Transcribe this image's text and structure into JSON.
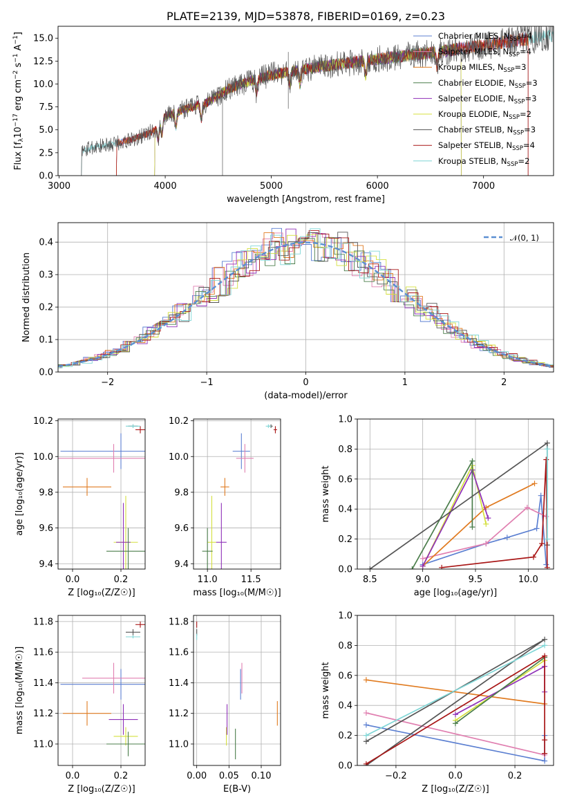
{
  "chart_data": [
    {
      "id": "spectrum",
      "type": "line",
      "title": "PLATE=2139, MJD=53878, FIBERID=0169, z=0.23",
      "xlabel": "wavelength [Angstrom, rest frame]",
      "ylabel_parts": {
        "pre": "Flux [f",
        "sub": "λ",
        "mid": "10",
        "sup1": "−17",
        "mid2": " erg cm",
        "sup2": "−2",
        "mid3": " s",
        "sup3": "−1",
        "mid4": " A",
        "sup4": "−1",
        "post": "]"
      },
      "xlim": [
        2990,
        7660
      ],
      "ylim": [
        0,
        16.3
      ],
      "xticks": [
        3000,
        4000,
        5000,
        6000,
        7000
      ],
      "xticklabels": [
        "3000",
        "4000",
        "5000",
        "6000",
        "7000"
      ],
      "yticks": [
        0,
        2.5,
        5,
        7.5,
        10,
        12.5,
        15
      ],
      "yticklabels": [
        "0.0",
        "2.5",
        "5.0",
        "7.5",
        "10.0",
        "12.5",
        "15.0"
      ],
      "grid": false,
      "legend_position": "upper-right",
      "continuum": {
        "x": [
          3210,
          3300,
          3500,
          3700,
          3900,
          4000,
          4200,
          4400,
          4600,
          4800,
          5000,
          5200,
          5400,
          5600,
          5800,
          6000,
          6200,
          6400,
          6600,
          6800,
          7000,
          7200,
          7400,
          7600
        ],
        "y": [
          2.6,
          3.1,
          3.4,
          4.0,
          4.9,
          6.5,
          7.3,
          8.0,
          9.5,
          10.3,
          11.0,
          11.4,
          11.8,
          12.1,
          12.4,
          12.7,
          13.0,
          13.3,
          13.5,
          13.9,
          14.2,
          14.6,
          14.9,
          15.2
        ]
      },
      "series": [
        {
          "name": "Chabrier MILES, N<sub>SSP</sub>=4",
          "color": "#5b7fd1",
          "x_range": [
            3540,
            7420
          ]
        },
        {
          "name": "Salpeter MILES, N<sub>SSP</sub>=4",
          "color": "#e07fb0",
          "x_range": [
            3540,
            7420
          ]
        },
        {
          "name": "Kroupa MILES, N<sub>SSP</sub>=3",
          "color": "#e07a1f",
          "x_range": [
            3540,
            7420
          ]
        },
        {
          "name": "Chabrier ELODIE, N<sub>SSP</sub>=3",
          "color": "#4a7d4a",
          "x_range": [
            3900,
            6790
          ]
        },
        {
          "name": "Salpeter ELODIE, N<sub>SSP</sub>=3",
          "color": "#8e2fb8",
          "x_range": [
            3900,
            6790
          ]
        },
        {
          "name": "Kroupa ELODIE, N<sub>SSP</sub>=2",
          "color": "#d4df3c",
          "x_range": [
            3900,
            6790
          ]
        },
        {
          "name": "Chabrier STELIB, N<sub>SSP</sub>=3",
          "color": "#555555",
          "x_range": [
            3210,
            7660
          ]
        },
        {
          "name": "Salpeter STELIB, N<sub>SSP</sub>=4",
          "color": "#a81515",
          "x_range": [
            3540,
            7420
          ]
        },
        {
          "name": "Kroupa STELIB, N<sub>SSP</sub>=2",
          "color": "#7fd6d6",
          "x_range": [
            3210,
            7660
          ]
        }
      ]
    },
    {
      "id": "residuals",
      "type": "histogram",
      "xlabel": "(data-model)/error",
      "ylabel": "Normed distribution",
      "xlim": [
        -2.5,
        2.5
      ],
      "ylim": [
        0,
        0.46
      ],
      "xticks": [
        -2,
        -1,
        0,
        1,
        2
      ],
      "xticklabels": [
        "−2",
        "−1",
        "0",
        "1",
        "2"
      ],
      "yticks": [
        0,
        0.1,
        0.2,
        0.3,
        0.4
      ],
      "yticklabels": [
        "0.0",
        "0.1",
        "0.2",
        "0.3",
        "0.4"
      ],
      "grid": true,
      "legend": "𝒩(0, 1)",
      "legend_position": "upper-right",
      "bin_width": 0.1,
      "reference_curve": {
        "name": "𝒩(0, 1)",
        "color": "#5b8fd1",
        "style": "dashed"
      }
    },
    {
      "id": "age-vs-Z",
      "type": "errorbar",
      "xlabel": "Z [log₁₀(Z/Z☉)]",
      "ylabel": "age  [log₁₀(age/yr)]",
      "xlim": [
        -0.06,
        0.3
      ],
      "ylim": [
        9.37,
        10.21
      ],
      "xticks": [
        0,
        0.2
      ],
      "xticklabels": [
        "0.0",
        "0.2"
      ],
      "yticks": [
        9.4,
        9.6,
        9.8,
        10.0,
        10.2
      ],
      "yticklabels": [
        "9.4",
        "9.6",
        "9.8",
        "10.0",
        "10.2"
      ],
      "grid": true,
      "points": [
        {
          "color": "#5b7fd1",
          "x": 0.2,
          "xerr": 0.25,
          "y": 10.03,
          "yerr": 0.1
        },
        {
          "color": "#e07fb0",
          "x": 0.17,
          "xerr": 0.23,
          "y": 9.99,
          "yerr": 0.08
        },
        {
          "color": "#e07a1f",
          "x": 0.06,
          "xerr": 0.1,
          "y": 9.83,
          "yerr": 0.05
        },
        {
          "color": "#d4df3c",
          "x": 0.22,
          "xerr": 0.05,
          "y": 9.52,
          "yerr": 0.26
        },
        {
          "color": "#8e2fb8",
          "x": 0.21,
          "xerr": 0.03,
          "y": 9.52,
          "yerr": 0.22
        },
        {
          "color": "#4a7d4a",
          "x": 0.23,
          "xerr": 0.09,
          "y": 9.47,
          "yerr": 0.13
        },
        {
          "color": "#555555",
          "x": 0.25,
          "xerr": 0.02,
          "y": 10.17,
          "yerr": 0.01
        },
        {
          "color": "#a81515",
          "x": 0.28,
          "xerr": 0.02,
          "y": 10.15,
          "yerr": 0.02
        },
        {
          "color": "#7fd6d6",
          "x": 0.25,
          "xerr": 0.03,
          "y": 10.17,
          "yerr": 0.01
        }
      ]
    },
    {
      "id": "age-vs-mass",
      "type": "errorbar",
      "xlabel": "mass [log₁₀(M/M☉)]",
      "ylabel": "",
      "xlim": [
        10.84,
        11.84
      ],
      "ylim": [
        9.37,
        10.21
      ],
      "xticks": [
        11.0,
        11.5
      ],
      "xticklabels": [
        "11.0",
        "11.5"
      ],
      "yticks": [
        9.4,
        9.6,
        9.8,
        10.0,
        10.2
      ],
      "yticklabels": [
        "9.4",
        "9.6",
        "9.8",
        "10.0",
        "10.2"
      ],
      "grid": true,
      "points": [
        {
          "color": "#5b7fd1",
          "x": 11.39,
          "xerr": 0.1,
          "y": 10.03,
          "yerr": 0.1
        },
        {
          "color": "#e07fb0",
          "x": 11.43,
          "xerr": 0.1,
          "y": 9.99,
          "yerr": 0.08
        },
        {
          "color": "#e07a1f",
          "x": 11.2,
          "xerr": 0.05,
          "y": 9.83,
          "yerr": 0.05
        },
        {
          "color": "#d4df3c",
          "x": 11.05,
          "xerr": 0.05,
          "y": 9.52,
          "yerr": 0.26
        },
        {
          "color": "#8e2fb8",
          "x": 11.16,
          "xerr": 0.06,
          "y": 9.52,
          "yerr": 0.22
        },
        {
          "color": "#4a7d4a",
          "x": 11.0,
          "xerr": 0.06,
          "y": 9.47,
          "yerr": 0.13
        },
        {
          "color": "#555555",
          "x": 11.73,
          "xerr": 0.02,
          "y": 10.17,
          "yerr": 0.01
        },
        {
          "color": "#a81515",
          "x": 11.78,
          "xerr": 0.02,
          "y": 10.15,
          "yerr": 0.02
        },
        {
          "color": "#7fd6d6",
          "x": 11.7,
          "xerr": 0.03,
          "y": 10.17,
          "yerr": 0.01
        }
      ]
    },
    {
      "id": "weight-vs-age",
      "type": "line",
      "xlabel": "age  [log₁₀(age/yr)]",
      "ylabel": "mass weight",
      "xlim": [
        8.38,
        10.24
      ],
      "ylim": [
        0,
        1
      ],
      "xticks": [
        8.5,
        9.0,
        9.5,
        10.0
      ],
      "xticklabels": [
        "8.5",
        "9.0",
        "9.5",
        "10.0"
      ],
      "yticks": [
        0,
        0.2,
        0.4,
        0.6,
        0.8,
        1.0
      ],
      "yticklabels": [
        "0.0",
        "0.2",
        "0.4",
        "0.6",
        "0.8",
        "1.0"
      ],
      "grid": true,
      "series": [
        {
          "color": "#5b7fd1",
          "x": [
            9.0,
            9.6,
            9.8,
            10.08,
            10.12,
            10.17
          ],
          "y": [
            0.03,
            0.17,
            0.21,
            0.27,
            0.49,
            0.03
          ]
        },
        {
          "color": "#e07fb0",
          "x": [
            9.0,
            9.6,
            9.99,
            10.17
          ],
          "y": [
            0.07,
            0.17,
            0.41,
            0.35
          ]
        },
        {
          "color": "#e07a1f",
          "x": [
            9.0,
            9.6,
            10.06
          ],
          "y": [
            0.02,
            0.41,
            0.57
          ]
        },
        {
          "color": "#d4df3c",
          "x": [
            9.0,
            9.47,
            9.6
          ],
          "y": [
            0.02,
            0.69,
            0.3
          ]
        },
        {
          "color": "#8e2fb8",
          "x": [
            9.0,
            9.47,
            9.62
          ],
          "y": [
            0.02,
            0.66,
            0.34
          ]
        },
        {
          "color": "#4a7d4a",
          "x": [
            8.9,
            9.47,
            9.47
          ],
          "y": [
            0.0,
            0.72,
            0.28
          ]
        },
        {
          "color": "#555555",
          "x": [
            8.5,
            10.18,
            10.18
          ],
          "y": [
            0.0,
            0.84,
            0.16
          ]
        },
        {
          "color": "#a81515",
          "x": [
            9.18,
            10.05,
            10.13,
            10.17,
            10.18
          ],
          "y": [
            0.01,
            0.08,
            0.17,
            0.73,
            0.01
          ]
        },
        {
          "color": "#7fd6d6",
          "x": [
            10.18,
            10.18
          ],
          "y": [
            0.8,
            0.2
          ]
        }
      ]
    },
    {
      "id": "mass-vs-Z",
      "type": "errorbar",
      "xlabel": "Z [log₁₀(Z/Z☉)]",
      "ylabel": "mass [log₁₀(M/M☉)]",
      "xlim": [
        -0.06,
        0.3
      ],
      "ylim": [
        10.86,
        11.84
      ],
      "xticks": [
        0,
        0.2
      ],
      "xticklabels": [
        "0.0",
        "0.2"
      ],
      "yticks": [
        11.0,
        11.2,
        11.4,
        11.6,
        11.8
      ],
      "yticklabels": [
        "11.0",
        "11.2",
        "11.4",
        "11.6",
        "11.8"
      ],
      "grid": true,
      "points": [
        {
          "color": "#5b7fd1",
          "x": 0.2,
          "xerr": 0.25,
          "y": 11.39,
          "yerr": 0.1
        },
        {
          "color": "#e07fb0",
          "x": 0.17,
          "xerr": 0.13,
          "y": 11.43,
          "yerr": 0.1
        },
        {
          "color": "#e07a1f",
          "x": 0.06,
          "xerr": 0.1,
          "y": 11.2,
          "yerr": 0.08
        },
        {
          "color": "#d4df3c",
          "x": 0.22,
          "xerr": 0.05,
          "y": 11.05,
          "yerr": 0.06
        },
        {
          "color": "#8e2fb8",
          "x": 0.21,
          "xerr": 0.06,
          "y": 11.16,
          "yerr": 0.1
        },
        {
          "color": "#4a7d4a",
          "x": 0.23,
          "xerr": 0.09,
          "y": 11.0,
          "yerr": 0.08
        },
        {
          "color": "#555555",
          "x": 0.25,
          "xerr": 0.03,
          "y": 11.73,
          "yerr": 0.02
        },
        {
          "color": "#a81515",
          "x": 0.28,
          "xerr": 0.02,
          "y": 11.78,
          "yerr": 0.02
        },
        {
          "color": "#7fd6d6",
          "x": 0.25,
          "xerr": 0.03,
          "y": 11.7,
          "yerr": 0.01
        }
      ]
    },
    {
      "id": "mass-vs-EBV",
      "type": "errorbar",
      "xlabel": "E(B-V)",
      "ylabel": "",
      "xlim": [
        -0.005,
        0.13
      ],
      "ylim": [
        10.86,
        11.84
      ],
      "xticks": [
        0,
        0.05,
        0.1
      ],
      "xticklabels": [
        "0.00",
        "0.05",
        "0.10"
      ],
      "yticks": [
        11.0,
        11.2,
        11.4,
        11.6,
        11.8
      ],
      "yticklabels": [
        "11.0",
        "11.2",
        "11.4",
        "11.6",
        "11.8"
      ],
      "grid": true,
      "points": [
        {
          "color": "#5b7fd1",
          "x": 0.068,
          "xerr": 0,
          "y": 11.39,
          "yerr": 0.1
        },
        {
          "color": "#e07fb0",
          "x": 0.07,
          "xerr": 0,
          "y": 11.43,
          "yerr": 0.1
        },
        {
          "color": "#e07a1f",
          "x": 0.125,
          "xerr": 0,
          "y": 11.2,
          "yerr": 0.08
        },
        {
          "color": "#d4df3c",
          "x": 0.046,
          "xerr": 0,
          "y": 11.05,
          "yerr": 0.06
        },
        {
          "color": "#8e2fb8",
          "x": 0.047,
          "xerr": 0,
          "y": 11.16,
          "yerr": 0.1
        },
        {
          "color": "#4a7d4a",
          "x": 0.06,
          "xerr": 0,
          "y": 11.0,
          "yerr": 0.1
        },
        {
          "color": "#555555",
          "x": 0.0,
          "xerr": 0,
          "y": 11.73,
          "yerr": 0.02
        },
        {
          "color": "#a81515",
          "x": 0.0,
          "xerr": 0,
          "y": 11.78,
          "yerr": 0.02
        },
        {
          "color": "#7fd6d6",
          "x": 0.0,
          "xerr": 0,
          "y": 11.7,
          "yerr": 0.02
        }
      ]
    },
    {
      "id": "weight-vs-Z",
      "type": "line",
      "xlabel": "Z [log₁₀(Z/Z☉)]",
      "ylabel": "mass weight",
      "xlim": [
        -0.33,
        0.33
      ],
      "ylim": [
        0,
        1
      ],
      "xticks": [
        -0.2,
        0.0,
        0.2
      ],
      "xticklabels": [
        "−0.2",
        "0.0",
        "0.2"
      ],
      "yticks": [
        0,
        0.2,
        0.4,
        0.6,
        0.8,
        1.0
      ],
      "yticklabels": [
        "0.0",
        "0.2",
        "0.4",
        "0.6",
        "0.8",
        "1.0"
      ],
      "grid": true,
      "series": [
        {
          "color": "#5b7fd1",
          "x": [
            -0.3,
            0.3,
            0.3
          ],
          "y": [
            0.27,
            0.03,
            0.2
          ]
        },
        {
          "color": "#e07fb0",
          "x": [
            -0.3,
            0.3
          ],
          "y": [
            0.35,
            0.07
          ]
        },
        {
          "color": "#e07a1f",
          "x": [
            -0.3,
            0.3
          ],
          "y": [
            0.57,
            0.41
          ]
        },
        {
          "color": "#d4df3c",
          "x": [
            0.0,
            0.3
          ],
          "y": [
            0.3,
            0.7
          ]
        },
        {
          "color": "#8e2fb8",
          "x": [
            0.0,
            0.3,
            0.3
          ],
          "y": [
            0.34,
            0.66,
            0.49
          ]
        },
        {
          "color": "#4a7d4a",
          "x": [
            0.0,
            0.3
          ],
          "y": [
            0.28,
            0.72
          ]
        },
        {
          "color": "#555555",
          "x": [
            -0.3,
            0.3,
            -0.3
          ],
          "y": [
            0.0,
            0.84,
            0.16
          ]
        },
        {
          "color": "#a81515",
          "x": [
            -0.3,
            0.3,
            0.3,
            0.3
          ],
          "y": [
            0.01,
            0.73,
            0.17,
            0.08
          ]
        },
        {
          "color": "#7fd6d6",
          "x": [
            -0.3,
            0.3
          ],
          "y": [
            0.2,
            0.8
          ]
        }
      ]
    }
  ]
}
